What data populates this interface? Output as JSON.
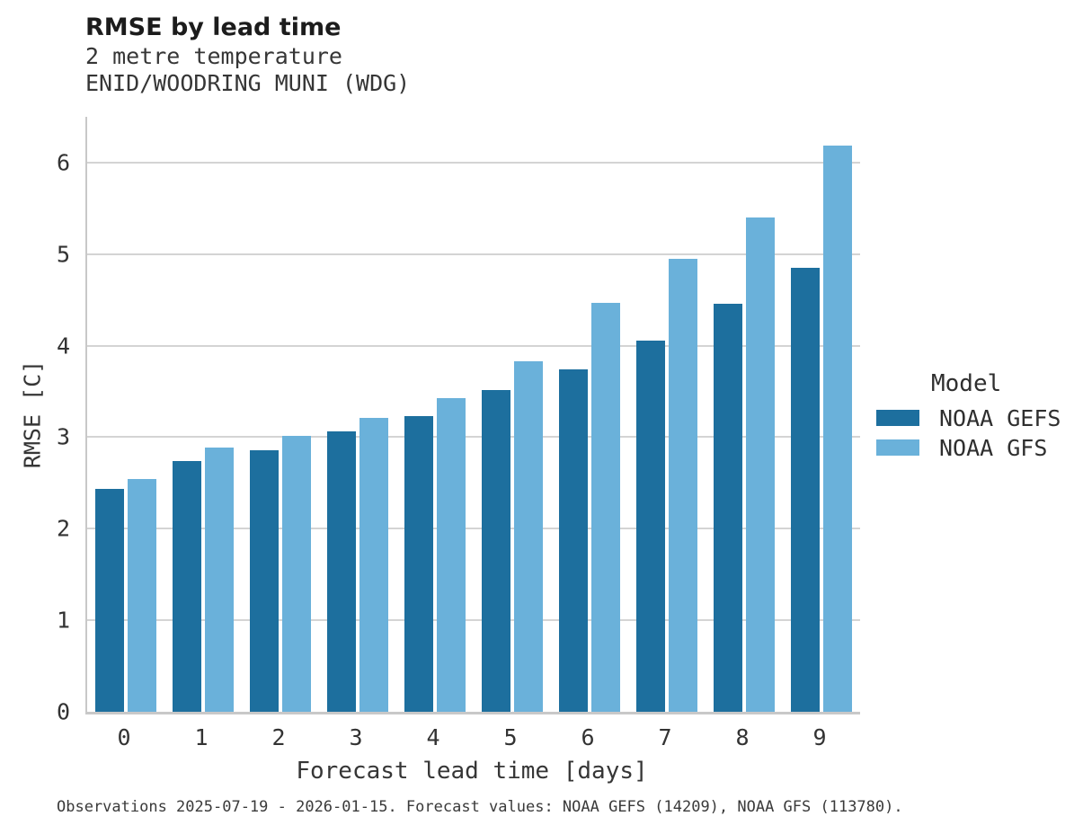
{
  "chart_data": {
    "type": "bar",
    "title": "RMSE by lead time",
    "subtitles": [
      "2 metre temperature",
      "ENID/WOODRING MUNI (WDG)"
    ],
    "xlabel": "Forecast lead time [days]",
    "ylabel": "RMSE [C]",
    "categories": [
      "0",
      "1",
      "2",
      "3",
      "4",
      "5",
      "6",
      "7",
      "8",
      "9"
    ],
    "series": [
      {
        "name": "NOAA GEFS",
        "color": "#1d6f9e",
        "values": [
          2.44,
          2.74,
          2.86,
          3.06,
          3.23,
          3.52,
          3.74,
          4.06,
          4.46,
          4.85
        ]
      },
      {
        "name": "NOAA GFS",
        "color": "#6ab1da",
        "values": [
          2.54,
          2.89,
          3.01,
          3.21,
          3.43,
          3.83,
          4.47,
          4.95,
          5.4,
          6.19
        ]
      }
    ],
    "ylim": [
      0,
      6.5
    ],
    "yticks": [
      0,
      1,
      2,
      3,
      4,
      5,
      6
    ],
    "grid": true,
    "legend_title": "Model",
    "legend_position": "right"
  },
  "footnote": "Observations 2025-07-19 - 2026-01-15. Forecast values: NOAA GEFS (14209), NOAA GFS (113780).",
  "colors": {
    "gefs_bar": "#1d6f9e",
    "gfs_bar": "#6ab1da",
    "gridline": "#d4d4d4",
    "spine": "#c8c8c8",
    "title_text": "#1c1c1c",
    "body_text": "#363636"
  }
}
